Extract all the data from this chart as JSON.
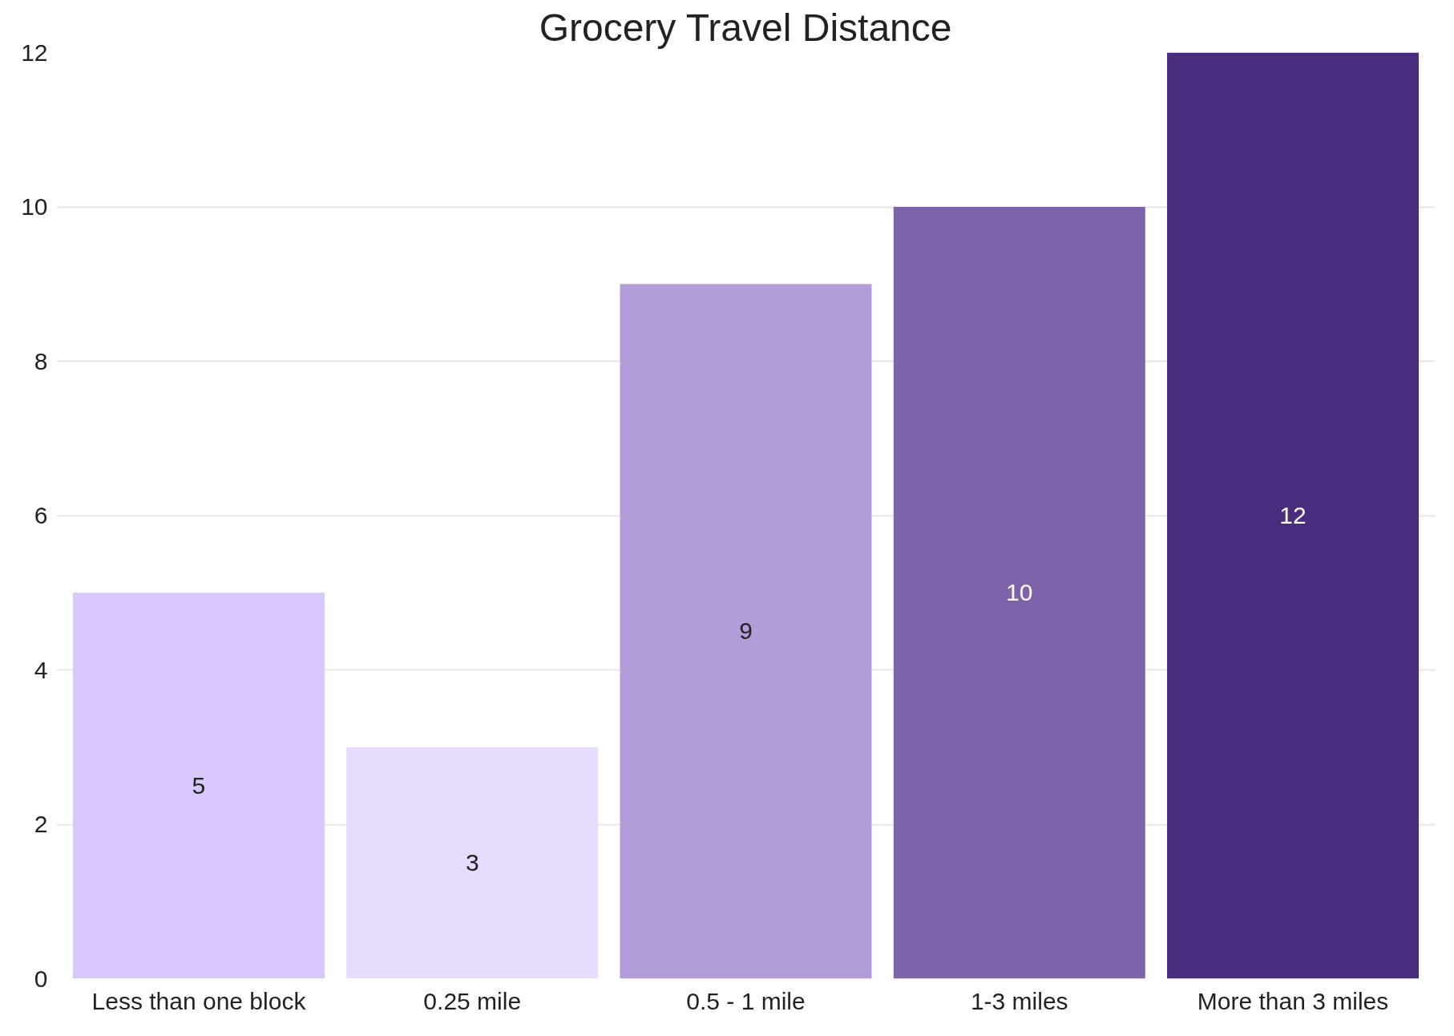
{
  "chart_data": {
    "type": "bar",
    "title": "Grocery Travel Distance",
    "categories": [
      "Less than one block",
      "0.25 mile",
      "0.5 - 1 mile",
      "1-3 miles",
      "More than 3 miles"
    ],
    "values": [
      5,
      3,
      9,
      10,
      12
    ],
    "colors": [
      "#d7c7fa",
      "#e7dcfe",
      "#b29ed9",
      "#7e63ab",
      "#4a2c7d"
    ],
    "ylim": [
      0,
      12
    ],
    "yticks": [
      0,
      2,
      4,
      6,
      8,
      10,
      12
    ],
    "grid": "y",
    "data_labels": true
  }
}
